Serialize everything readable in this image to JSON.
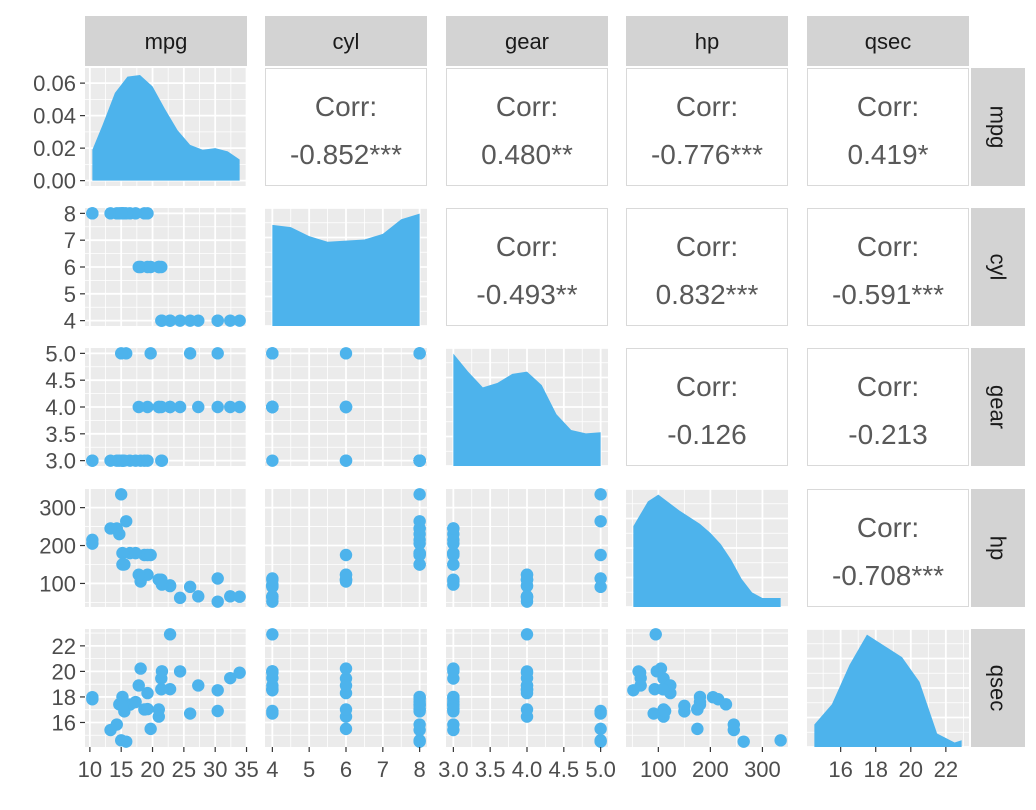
{
  "colors": {
    "point": "#4DB3EC",
    "panel_bg": "#EBEBEB",
    "grid": "#FFFFFF",
    "strip_bg": "#D3D3D3",
    "strip_text": "#1A1A1A",
    "axis_text": "#4D4D4D",
    "corr_text": "#595959",
    "corr_border": "#D9D9D9"
  },
  "chart_data": {
    "type": "scatter-matrix",
    "variables": [
      "mpg",
      "cyl",
      "gear",
      "hp",
      "qsec"
    ],
    "strip_labels": [
      "mpg",
      "cyl",
      "gear",
      "hp",
      "qsec"
    ],
    "corr_label": "Corr:",
    "correlations": [
      {
        "row": "mpg",
        "col": "cyl",
        "text": "-0.852***"
      },
      {
        "row": "mpg",
        "col": "gear",
        "text": "0.480**"
      },
      {
        "row": "mpg",
        "col": "hp",
        "text": "-0.776***"
      },
      {
        "row": "mpg",
        "col": "qsec",
        "text": "0.419*"
      },
      {
        "row": "cyl",
        "col": "gear",
        "text": "-0.493**"
      },
      {
        "row": "cyl",
        "col": "hp",
        "text": "0.832***"
      },
      {
        "row": "cyl",
        "col": "qsec",
        "text": "-0.591***"
      },
      {
        "row": "gear",
        "col": "hp",
        "text": "-0.126"
      },
      {
        "row": "gear",
        "col": "qsec",
        "text": "-0.213"
      },
      {
        "row": "hp",
        "col": "qsec",
        "text": "-0.708***"
      }
    ],
    "axes": {
      "mpg": {
        "range": [
          10.4,
          33.9
        ],
        "ticks": [
          10,
          15,
          20,
          25,
          30,
          35
        ],
        "tick_labels": [
          "10",
          "15",
          "20",
          "25",
          "30",
          "35"
        ]
      },
      "cyl": {
        "range": [
          4,
          8
        ],
        "ticks": [
          4,
          5,
          6,
          7,
          8
        ],
        "tick_labels": [
          "4",
          "5",
          "6",
          "7",
          "8"
        ]
      },
      "gear": {
        "range": [
          3,
          5
        ],
        "ticks": [
          3.0,
          3.5,
          4.0,
          4.5,
          5.0
        ],
        "tick_labels": [
          "3.0",
          "3.5",
          "4.0",
          "4.5",
          "5.0"
        ]
      },
      "hp": {
        "range": [
          52,
          335
        ],
        "ticks": [
          100,
          200,
          300
        ],
        "tick_labels": [
          "100",
          "200",
          "300"
        ]
      },
      "qsec": {
        "range": [
          14.5,
          22.9
        ],
        "ticks": [
          16,
          18,
          20,
          22
        ],
        "tick_labels": [
          "16",
          "18",
          "20",
          "22"
        ]
      }
    },
    "density_axis": {
      "range": [
        0,
        0.066
      ],
      "ticks": [
        0,
        0.02,
        0.04,
        0.06
      ],
      "tick_labels": [
        "0.00",
        "0.02",
        "0.04",
        "0.06"
      ]
    },
    "density": {
      "mpg": [
        [
          10.4,
          0.019
        ],
        [
          12,
          0.034
        ],
        [
          14,
          0.054
        ],
        [
          16,
          0.064
        ],
        [
          18,
          0.065
        ],
        [
          20,
          0.058
        ],
        [
          22,
          0.044
        ],
        [
          24,
          0.031
        ],
        [
          26,
          0.022
        ],
        [
          28,
          0.019
        ],
        [
          30,
          0.02
        ],
        [
          32,
          0.018
        ],
        [
          33.9,
          0.013
        ]
      ],
      "cyl": [
        [
          4,
          0.9
        ],
        [
          4.5,
          0.88
        ],
        [
          5,
          0.8
        ],
        [
          5.5,
          0.75
        ],
        [
          6,
          0.76
        ],
        [
          6.5,
          0.77
        ],
        [
          7,
          0.82
        ],
        [
          7.5,
          0.95
        ],
        [
          8,
          1.0
        ]
      ],
      "gear": [
        [
          3,
          1.0
        ],
        [
          3.2,
          0.84
        ],
        [
          3.4,
          0.7
        ],
        [
          3.6,
          0.74
        ],
        [
          3.8,
          0.82
        ],
        [
          4,
          0.84
        ],
        [
          4.2,
          0.72
        ],
        [
          4.4,
          0.46
        ],
        [
          4.6,
          0.32
        ],
        [
          4.8,
          0.29
        ],
        [
          5,
          0.3
        ]
      ],
      "hp": [
        [
          52,
          0.72
        ],
        [
          80,
          0.94
        ],
        [
          100,
          1.0
        ],
        [
          120,
          0.93
        ],
        [
          140,
          0.86
        ],
        [
          160,
          0.8
        ],
        [
          180,
          0.74
        ],
        [
          200,
          0.66
        ],
        [
          220,
          0.56
        ],
        [
          240,
          0.42
        ],
        [
          260,
          0.25
        ],
        [
          280,
          0.13
        ],
        [
          300,
          0.08
        ],
        [
          335,
          0.08
        ]
      ],
      "qsec": [
        [
          14.5,
          0.2
        ],
        [
          15.5,
          0.38
        ],
        [
          16.5,
          0.73
        ],
        [
          17.5,
          1.0
        ],
        [
          18.5,
          0.9
        ],
        [
          19.5,
          0.8
        ],
        [
          20.5,
          0.58
        ],
        [
          21.5,
          0.12
        ],
        [
          22.5,
          0.04
        ],
        [
          22.9,
          0.06
        ]
      ]
    },
    "points": {
      "mpg": [
        21,
        21,
        22.8,
        21.4,
        18.7,
        18.1,
        14.3,
        24.4,
        22.8,
        19.2,
        17.8,
        16.4,
        17.3,
        15.2,
        10.4,
        10.4,
        14.7,
        32.4,
        30.4,
        33.9,
        21.5,
        15.5,
        15.2,
        13.3,
        19.2,
        27.3,
        26,
        30.4,
        15.8,
        19.7,
        15,
        21.4
      ],
      "cyl": [
        6,
        6,
        4,
        6,
        8,
        6,
        8,
        4,
        4,
        6,
        6,
        8,
        8,
        8,
        8,
        8,
        8,
        4,
        4,
        4,
        4,
        8,
        8,
        8,
        8,
        4,
        4,
        4,
        8,
        6,
        8,
        4
      ],
      "gear": [
        4,
        4,
        4,
        3,
        3,
        3,
        3,
        4,
        4,
        4,
        4,
        3,
        3,
        3,
        3,
        3,
        3,
        4,
        4,
        4,
        3,
        3,
        3,
        3,
        3,
        4,
        5,
        5,
        5,
        5,
        5,
        4
      ],
      "hp": [
        110,
        110,
        93,
        110,
        175,
        105,
        245,
        62,
        95,
        123,
        123,
        180,
        180,
        180,
        205,
        215,
        230,
        66,
        52,
        65,
        97,
        150,
        150,
        245,
        175,
        66,
        91,
        113,
        264,
        175,
        335,
        109
      ],
      "qsec": [
        16.46,
        17.02,
        18.61,
        19.44,
        17.02,
        20.22,
        15.84,
        20,
        22.9,
        18.3,
        18.9,
        17.4,
        17.6,
        18,
        17.98,
        17.82,
        17.42,
        19.47,
        18.52,
        19.9,
        20.01,
        16.87,
        17.3,
        15.41,
        17.05,
        18.9,
        16.7,
        16.9,
        14.5,
        15.5,
        14.6,
        18.6
      ]
    }
  }
}
